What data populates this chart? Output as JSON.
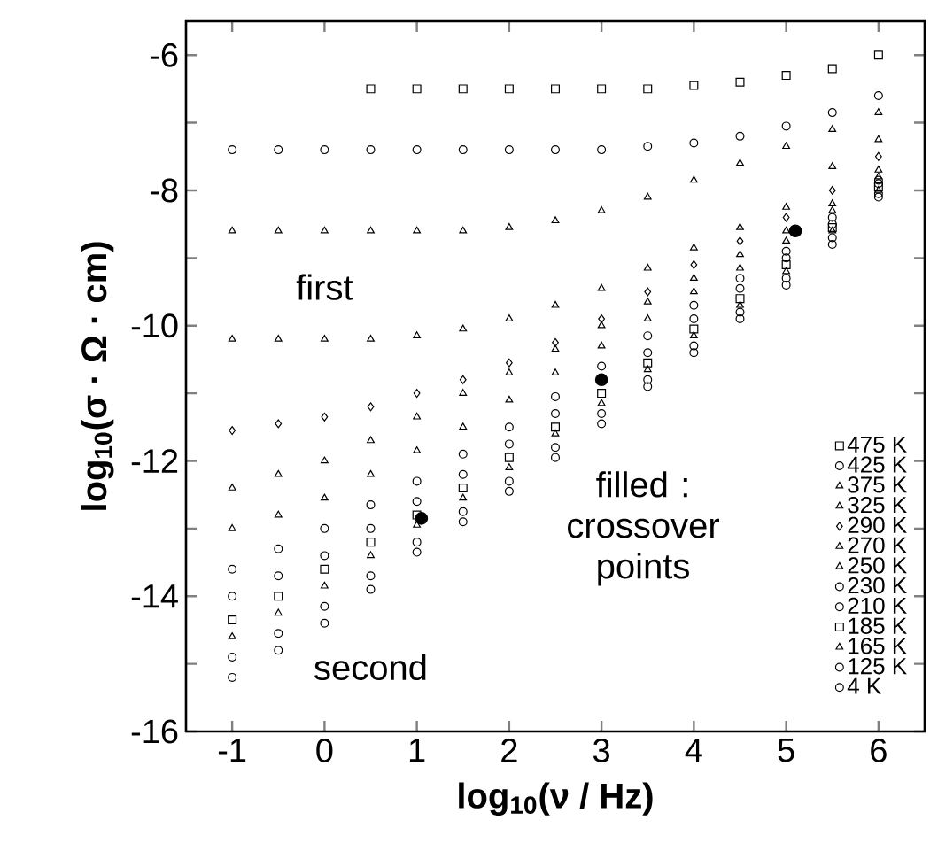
{
  "chart_data": {
    "type": "scatter",
    "xlabel": "log$_{10}$(ν / Hz)",
    "ylabel": "log$_{10}$(σ · Ω · cm)",
    "xlim": [
      -1.5,
      6.5
    ],
    "ylim": [
      -16,
      -5.5
    ],
    "xticks": [
      -1,
      0,
      1,
      2,
      3,
      4,
      5,
      6
    ],
    "yticks": [
      -16,
      {
        "value": -15,
        "label": null
      },
      -14,
      {
        "value": -13,
        "label": null
      },
      -12,
      {
        "value": -11,
        "label": null
      },
      -10,
      {
        "value": -9,
        "label": null
      },
      -8,
      {
        "value": -7,
        "label": null
      },
      -6
    ],
    "grid": false,
    "legend": "bottom right",
    "annotations": [
      "first",
      "second",
      "filled : crossover points"
    ],
    "x": [
      -1,
      -0.5,
      0,
      0.5,
      1,
      1.5,
      2,
      2.5,
      3,
      3.5,
      4,
      4.5,
      5,
      5.5,
      6
    ],
    "series": [
      {
        "name": "475 K",
        "color": "#000000",
        "marker": "square",
        "x": [
          0.5,
          1,
          1.5,
          2,
          2.5,
          3,
          3.5,
          4,
          4.5,
          5,
          5.5,
          6
        ],
        "values": [
          -6.5,
          -6.5,
          -6.5,
          -6.5,
          -6.5,
          -6.5,
          -6.5,
          -6.45,
          -6.4,
          -6.3,
          -6.2,
          -6.0
        ]
      },
      {
        "name": "425 K",
        "color": "#000000",
        "marker": "circle",
        "values": [
          -7.4,
          -7.4,
          -7.4,
          -7.4,
          -7.4,
          -7.4,
          -7.4,
          -7.4,
          -7.4,
          -7.35,
          -7.3,
          -7.2,
          -7.05,
          -6.85,
          -6.6
        ]
      },
      {
        "name": "375 K",
        "color": "#000000",
        "marker": "triangle",
        "values": [
          -8.6,
          -8.6,
          -8.6,
          -8.6,
          -8.6,
          -8.6,
          -8.55,
          -8.45,
          -8.3,
          -8.1,
          -7.85,
          -7.6,
          -7.35,
          -7.1,
          -6.85
        ]
      },
      {
        "name": "325 K",
        "color": "#000000",
        "marker": "triangle",
        "values": [
          -10.2,
          -10.2,
          -10.2,
          -10.2,
          -10.15,
          -10.05,
          -9.9,
          -9.7,
          -9.45,
          -9.15,
          -8.85,
          -8.55,
          -8.25,
          -7.65,
          -7.25
        ]
      },
      {
        "name": "290 K",
        "color": "#000000",
        "marker": "diamond",
        "values": [
          -11.55,
          -11.45,
          -11.35,
          -11.2,
          -11.0,
          -10.8,
          -10.55,
          -10.25,
          -9.9,
          -9.5,
          -9.1,
          -8.75,
          -8.4,
          -8.0,
          -7.5
        ]
      },
      {
        "name": "270 K",
        "color": "#000000",
        "marker": "triangle",
        "values": [
          -12.4,
          -12.2,
          -12.0,
          -11.7,
          -11.35,
          -11.0,
          -10.7,
          -10.35,
          -10.0,
          -9.65,
          -9.3,
          -8.95,
          -8.6,
          -8.2,
          -7.7
        ]
      },
      {
        "name": "250 K",
        "color": "#000000",
        "marker": "triangle",
        "values": [
          -13.0,
          -12.8,
          -12.55,
          -12.2,
          -11.85,
          -11.5,
          -11.1,
          -10.7,
          -10.3,
          -9.9,
          -9.5,
          -9.15,
          -8.75,
          -8.3,
          -7.8
        ]
      },
      {
        "name": "230 K",
        "color": "#000000",
        "marker": "circle",
        "values": [
          -13.6,
          -13.3,
          -13.0,
          -12.65,
          -12.3,
          -11.9,
          -11.5,
          -11.05,
          -10.6,
          -10.15,
          -9.7,
          -9.3,
          -8.9,
          -8.4,
          -7.85
        ]
      },
      {
        "name": "210 K",
        "color": "#000000",
        "marker": "circle",
        "values": [
          -14.0,
          -13.7,
          -13.4,
          -13.0,
          -12.6,
          -12.2,
          -11.75,
          -11.3,
          null,
          -10.4,
          -9.9,
          -9.45,
          -9.0,
          -8.5,
          -7.9
        ]
      },
      {
        "name": "185 K",
        "color": "#000000",
        "marker": "square",
        "values": [
          -14.35,
          -14.0,
          -13.6,
          -13.2,
          -12.8,
          -12.4,
          -11.95,
          -11.5,
          -11.0,
          -10.55,
          -10.05,
          -9.6,
          -9.1,
          -8.55,
          -7.95
        ]
      },
      {
        "name": "165 K",
        "color": "#000000",
        "marker": "triangle",
        "values": [
          -14.6,
          -14.25,
          -13.85,
          -13.4,
          -12.95,
          -12.55,
          -12.1,
          -11.6,
          -11.15,
          -10.65,
          -10.15,
          -9.7,
          -9.2,
          -8.6,
          -8.0
        ]
      },
      {
        "name": "125 K",
        "color": "#000000",
        "marker": "circle",
        "values": [
          -14.9,
          -14.55,
          -14.15,
          -13.7,
          -13.2,
          -12.75,
          -12.3,
          -11.8,
          -11.3,
          -10.8,
          -10.3,
          -9.8,
          -9.3,
          -8.7,
          -8.05
        ]
      },
      {
        "name": "4 K",
        "color": "#000000",
        "marker": "circle",
        "values": [
          -15.2,
          -14.8,
          -14.4,
          -13.9,
          -13.35,
          -12.9,
          -12.45,
          -11.95,
          -11.45,
          -10.9,
          -10.4,
          -9.9,
          -9.4,
          -8.8,
          -8.1
        ]
      },
      {
        "color": "#000000",
        "marker": "circle",
        "x": [
          1.05,
          3.0,
          5.1
        ],
        "values": [
          -12.85,
          -10.8,
          -8.6
        ]
      }
    ]
  }
}
